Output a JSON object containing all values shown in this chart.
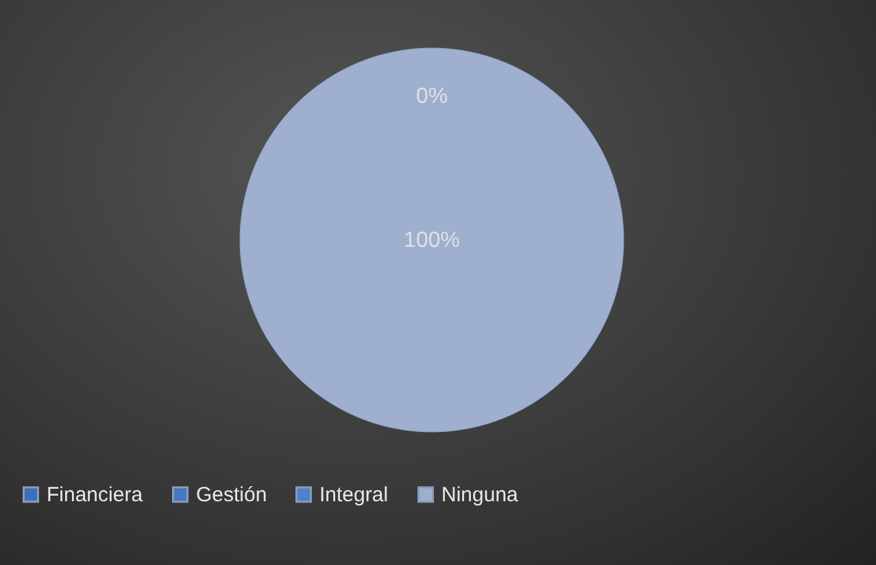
{
  "chart_data": {
    "type": "pie",
    "categories": [
      "Financiera",
      "Gestión",
      "Integral",
      "Ninguna"
    ],
    "values": [
      0,
      0,
      0,
      100
    ],
    "value_labels": [
      "0%",
      null,
      null,
      "100%"
    ],
    "colors": [
      "#3f6fb8",
      "#4677c0",
      "#4f80c8",
      "#9eafcf"
    ],
    "legend": "bottom"
  }
}
